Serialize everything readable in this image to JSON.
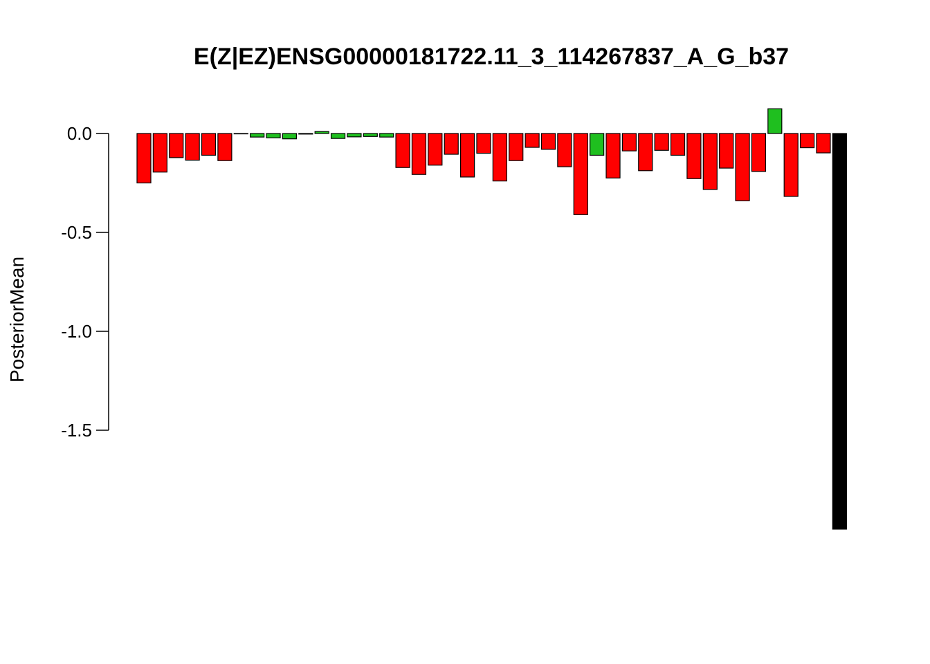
{
  "chart_data": {
    "type": "bar",
    "title": "E(Z|EZ)ENSG00000181722.11_3_114267837_A_G_b37",
    "xlabel": "",
    "ylabel": "PosteriorMean",
    "yticks": [
      0.0,
      -0.5,
      -1.0,
      -1.5
    ],
    "ytick_labels": [
      "0.0",
      "-0.5",
      "-1.0",
      "-1.5"
    ],
    "ylim": [
      -2.0,
      0.13
    ],
    "grid": false,
    "legend": "none",
    "colors": {
      "negative": "#ff0000",
      "positive": "#1fbf1f",
      "highlight": "#000000",
      "outline": "#000000"
    },
    "values": [
      -0.25,
      -0.195,
      -0.122,
      -0.135,
      -0.11,
      -0.137,
      -0.002,
      -0.018,
      -0.022,
      -0.027,
      -0.003,
      0.01,
      -0.025,
      -0.017,
      -0.015,
      -0.018,
      -0.172,
      -0.207,
      -0.16,
      -0.105,
      -0.22,
      -0.1,
      -0.24,
      -0.137,
      -0.07,
      -0.08,
      -0.168,
      -0.41,
      -0.11,
      -0.225,
      -0.088,
      -0.188,
      -0.085,
      -0.11,
      -0.228,
      -0.283,
      -0.175,
      -0.34,
      -0.192,
      0.125,
      -0.318,
      -0.072,
      -0.098,
      -2.0
    ],
    "bar_colors": [
      "red",
      "red",
      "red",
      "red",
      "red",
      "red",
      "green",
      "green",
      "green",
      "green",
      "green",
      "green",
      "green",
      "green",
      "green",
      "green",
      "red",
      "red",
      "red",
      "red",
      "red",
      "red",
      "red",
      "red",
      "red",
      "red",
      "red",
      "red",
      "green",
      "red",
      "red",
      "red",
      "red",
      "red",
      "red",
      "red",
      "red",
      "red",
      "red",
      "green",
      "red",
      "red",
      "red",
      "black"
    ]
  }
}
